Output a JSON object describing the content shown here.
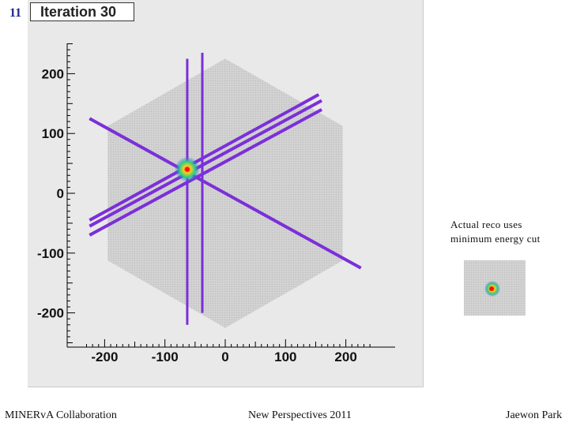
{
  "slide": {
    "number": "11"
  },
  "chart_data": {
    "type": "heatmap",
    "title": "Iteration 30",
    "xlabel": "",
    "ylabel": "",
    "xlim": [
      -260,
      260
    ],
    "ylim": [
      -255,
      265
    ],
    "xticks": [
      -200,
      -100,
      0,
      100,
      200
    ],
    "yticks": [
      200,
      100,
      0,
      -100,
      -200
    ],
    "xtick_labels": [
      "-200",
      "-100",
      "0",
      "100",
      "200"
    ],
    "ytick_labels": [
      "200",
      "100",
      "0",
      "-100",
      "-200"
    ],
    "detector": {
      "shape": "hexagon",
      "circumradius": 225
    },
    "tracks": [
      {
        "kind": "vertical",
        "x": -63,
        "y_range": [
          -220,
          225
        ]
      },
      {
        "kind": "vertical",
        "x": -38,
        "y_range": [
          -200,
          235
        ]
      },
      {
        "kind": "band",
        "from": [
          -225,
          125
        ],
        "to": [
          225,
          -125
        ]
      },
      {
        "kind": "band",
        "from": [
          -225,
          -45
        ],
        "to": [
          155,
          165
        ]
      },
      {
        "kind": "band",
        "from": [
          -225,
          -55
        ],
        "to": [
          160,
          155
        ]
      },
      {
        "kind": "band",
        "from": [
          -225,
          -70
        ],
        "to": [
          160,
          140
        ]
      }
    ],
    "hotspot": {
      "x": -63,
      "y": 40
    },
    "grid": false,
    "legend": "none"
  },
  "annotation": {
    "line1": "Actual reco uses",
    "line2": "minimum energy cut"
  },
  "footer": {
    "left": "MINERvA Collaboration",
    "center": "New Perspectives 2011",
    "right": "Jaewon Park"
  },
  "colors": {
    "track": "#7b2fd9",
    "hexagon": "#cccccc",
    "canvas": "#e9e9e9",
    "slide_number": "#1a2a8c"
  }
}
